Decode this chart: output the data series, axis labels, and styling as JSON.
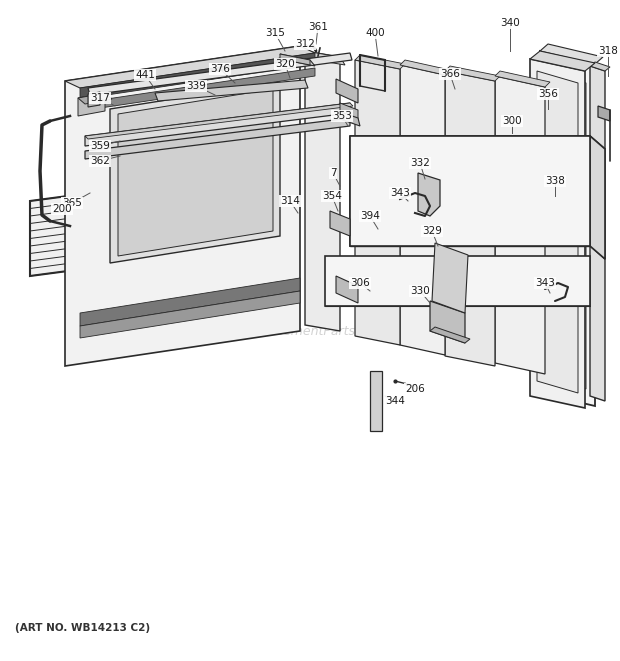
{
  "art_no": "(ART NO. WB14213 C2)",
  "watermark": "eReplacementParts.com",
  "bg_color": "#ffffff",
  "line_color": "#2a2a2a",
  "fig_width": 6.2,
  "fig_height": 6.61
}
